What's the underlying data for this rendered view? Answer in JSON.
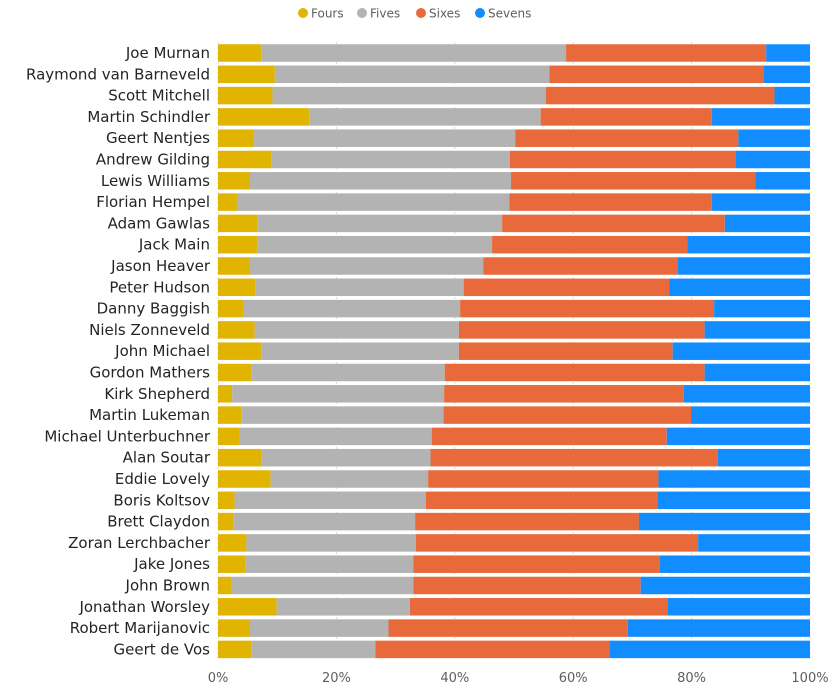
{
  "chart_data": {
    "type": "bar",
    "orientation": "horizontal",
    "stacked": true,
    "percent": true,
    "categories": [
      "Joe Murnan",
      "Raymond van Barneveld",
      "Scott Mitchell",
      "Martin Schindler",
      "Geert Nentjes",
      "Andrew Gilding",
      "Lewis Williams",
      "Florian Hempel",
      "Adam Gawlas",
      "Jack Main",
      "Jason Heaver",
      "Peter Hudson",
      "Danny Baggish",
      "Niels Zonneveld",
      "John Michael",
      "Gordon Mathers",
      "Kirk Shepherd",
      "Martin Lukeman",
      "Michael Unterbuchner",
      "Alan Soutar",
      "Eddie Lovely",
      "Boris Koltsov",
      "Brett Claydon",
      "Zoran Lerchbacher",
      "Jake Jones",
      "John Brown",
      "Jonathan Worsley",
      "Robert Marijanovic",
      "Geert de Vos"
    ],
    "series": [
      {
        "name": "Fours",
        "color": "#e0b400",
        "values": [
          7.3,
          9.6,
          9.2,
          15.4,
          6.1,
          9.0,
          5.4,
          3.2,
          6.7,
          6.7,
          5.4,
          6.3,
          4.3,
          6.2,
          7.3,
          5.7,
          2.4,
          3.9,
          3.7,
          7.4,
          8.9,
          2.8,
          2.6,
          4.8,
          4.7,
          2.2,
          9.9,
          5.4,
          5.6
        ]
      },
      {
        "name": "Fives",
        "color": "#b3b3b3",
        "values": [
          51.5,
          46.4,
          46.2,
          39.1,
          44.1,
          40.3,
          44.1,
          46.0,
          41.3,
          39.6,
          39.4,
          35.2,
          36.6,
          34.5,
          33.4,
          32.6,
          35.8,
          34.2,
          32.4,
          28.5,
          26.6,
          32.3,
          30.7,
          28.6,
          28.3,
          30.8,
          22.5,
          23.4,
          21.0
        ]
      },
      {
        "name": "Sixes",
        "color": "#e8693a",
        "values": [
          33.8,
          36.1,
          38.6,
          28.9,
          37.7,
          38.2,
          41.3,
          34.2,
          37.6,
          33.0,
          32.9,
          34.7,
          42.9,
          41.5,
          36.1,
          43.9,
          40.5,
          41.8,
          39.7,
          48.5,
          38.9,
          39.1,
          37.8,
          47.7,
          41.6,
          38.4,
          43.5,
          40.4,
          39.5
        ]
      },
      {
        "name": "Sevens",
        "color": "#118dff",
        "values": [
          7.4,
          7.9,
          6.0,
          16.6,
          12.1,
          12.5,
          9.2,
          16.6,
          14.4,
          20.7,
          22.3,
          23.8,
          16.2,
          17.8,
          23.2,
          17.8,
          21.3,
          20.1,
          24.2,
          15.6,
          25.6,
          25.8,
          28.9,
          18.9,
          25.4,
          28.6,
          24.1,
          30.8,
          33.9
        ]
      }
    ],
    "xlim": [
      0,
      100
    ],
    "x_ticks": [
      "0%",
      "20%",
      "40%",
      "60%",
      "80%",
      "100%"
    ],
    "legend_position": "top-center",
    "grid": true
  }
}
